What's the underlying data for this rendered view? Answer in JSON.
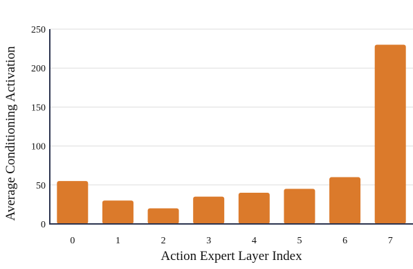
{
  "chart_data": {
    "type": "bar",
    "title": "",
    "xlabel": "Action Expert Layer Index",
    "ylabel": "Average Conditioning Activation",
    "categories": [
      "0",
      "1",
      "2",
      "3",
      "4",
      "5",
      "6",
      "7"
    ],
    "values": [
      55,
      30,
      20,
      35,
      40,
      45,
      60,
      230
    ],
    "ylim": [
      0,
      250
    ],
    "yticks": [
      "0",
      "50",
      "100",
      "150",
      "200",
      "250"
    ],
    "grid": "horizontal",
    "bar_color": "#db7a2b",
    "axis_color": "#2d3550",
    "grid_color": "#dddddd"
  }
}
